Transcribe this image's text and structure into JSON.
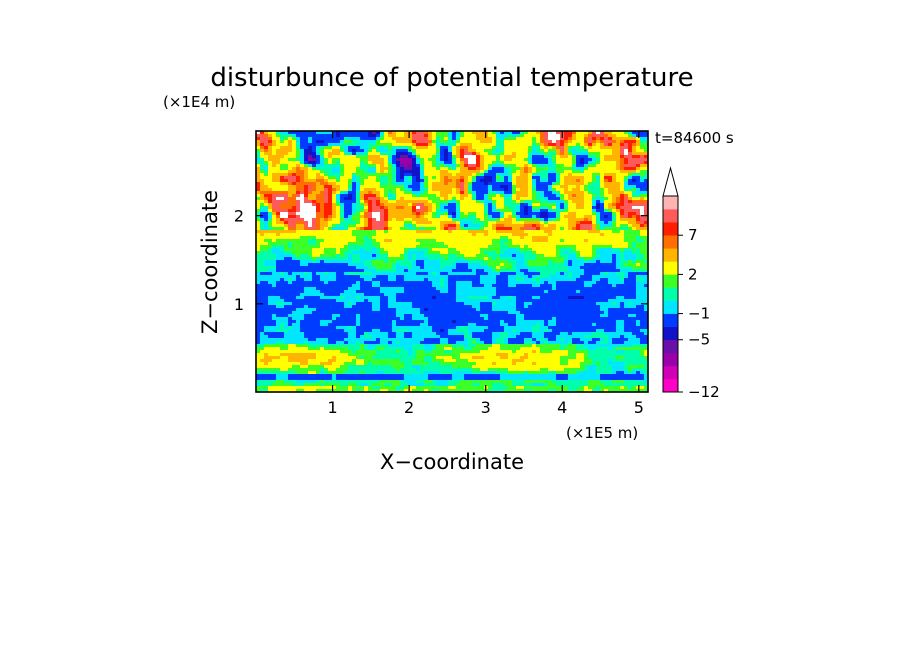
{
  "chart_data": {
    "type": "heatmap",
    "title": "disturbunce of potential temperature",
    "time_label": "t=84600 s",
    "xlabel": "X−coordinate",
    "ylabel": "Z−coordinate",
    "x_scale_label": "(×1E5 m)",
    "y_scale_label": "(×1E4 m)",
    "xlim": [
      0,
      5.12
    ],
    "ylim": [
      0,
      2.96
    ],
    "x_ticks": [
      {
        "value": 1,
        "label": "1"
      },
      {
        "value": 2,
        "label": "2"
      },
      {
        "value": 3,
        "label": "3"
      },
      {
        "value": 4,
        "label": "4"
      },
      {
        "value": 5,
        "label": "5"
      }
    ],
    "y_ticks": [
      {
        "value": 1,
        "label": "1"
      },
      {
        "value": 2,
        "label": "2"
      }
    ],
    "colorbar": {
      "levels": [
        -12,
        -10,
        -8,
        -6,
        -5,
        -3,
        -1,
        0,
        1,
        2,
        4,
        6,
        7,
        8,
        10
      ],
      "labeled_levels": [
        {
          "value": -12,
          "label": "−12"
        },
        {
          "value": -5,
          "label": "−5"
        },
        {
          "value": -1,
          "label": "−1"
        },
        {
          "value": 2,
          "label": "2"
        },
        {
          "value": 7,
          "label": "7"
        }
      ],
      "colors": [
        "#ff00c8",
        "#d000b4",
        "#9a00aa",
        "#6a0fa8",
        "#1212c8",
        "#003cff",
        "#00e6ff",
        "#00ffaa",
        "#3cff28",
        "#ffff00",
        "#ffb400",
        "#ff6e00",
        "#ff1e00",
        "#ff5a5a",
        "#ffb4b4"
      ],
      "extend_max": true
    }
  }
}
